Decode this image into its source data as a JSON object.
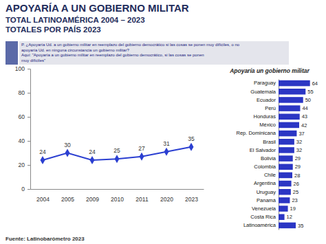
{
  "header": {
    "title": "APOYARÍA A UN GOBIERNO MILITAR",
    "subtitles": [
      "TOTAL LATINOAMÉRICA 2004 – 2023",
      "TOTALES POR PAÍS 2023"
    ]
  },
  "question": [
    "P. ¿Apoyaría Ud. a un gobierno militar en reemplazo del gobierno democrático si las cosas se ponen muy difíciles, o no",
    "apoyaría Ud. en ninguna circunstancia un gobierno militar?",
    "Aquí: \"Apoyaría a un gobierno militar en reemplazo del gobierno democrático, si las cosas se ponen",
    "muy difíciles\""
  ],
  "source": "Fuente: Latinobarómetro 2023",
  "chart_data": [
    {
      "type": "line",
      "categories": [
        "2004",
        "2005",
        "2009",
        "2010",
        "2011",
        "2020",
        "2023"
      ],
      "values": [
        24,
        30,
        24,
        25,
        27,
        31,
        35
      ],
      "color": "#2b3fd1",
      "marker": "diamond",
      "data_labels": true,
      "ylim": [
        0,
        100
      ],
      "yticks": [
        0,
        20,
        40,
        60,
        80,
        100
      ],
      "grid": false
    },
    {
      "type": "bar",
      "orientation": "horizontal",
      "title": "Apoyaría un gobierno militar",
      "categories": [
        "Paraguay",
        "Guatemala",
        "Ecuador",
        "Perú",
        "Honduras",
        "México",
        "Rep. Dominicana",
        "Brasil",
        "El Salvador",
        "Bolivia",
        "Colombia",
        "Chile",
        "Argentina",
        "Uruguay",
        "Panamá",
        "Venezuela",
        "Costa Rica",
        "Latinoamérica"
      ],
      "values": [
        64,
        55,
        50,
        44,
        43,
        42,
        37,
        32,
        32,
        29,
        29,
        28,
        26,
        25,
        23,
        19,
        12,
        35
      ],
      "color": "#2b36c4",
      "data_labels": true,
      "ylim": [
        0,
        70
      ],
      "tick_labels": "x"
    }
  ]
}
